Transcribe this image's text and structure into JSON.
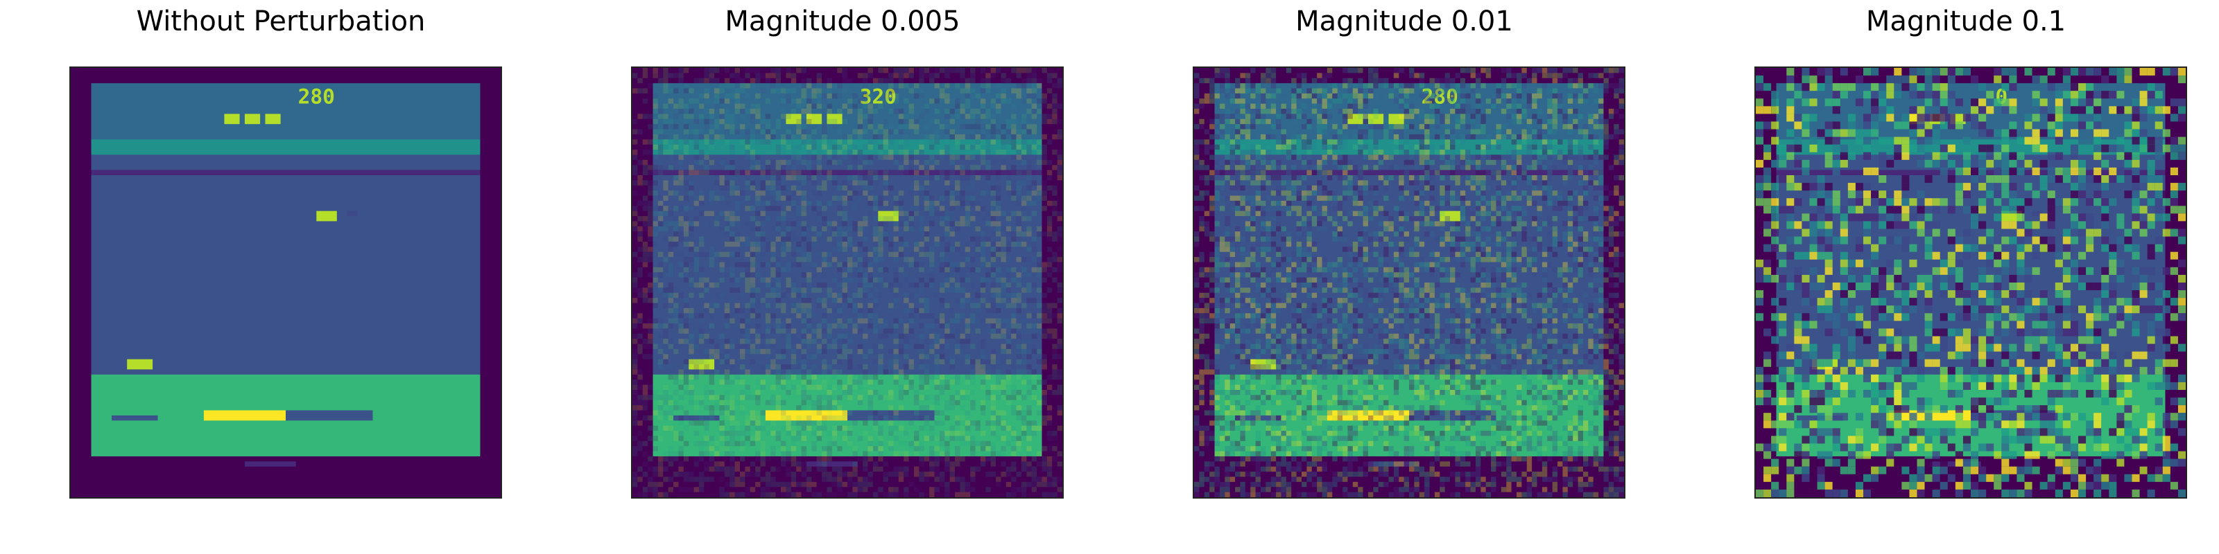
{
  "figure": {
    "panels": [
      {
        "title": "Without Perturbation",
        "noise": 0.0,
        "score": "280"
      },
      {
        "title": "Magnitude 0.005",
        "noise": 0.005,
        "score": "320"
      },
      {
        "title": "Magnitude 0.01",
        "noise": 0.01,
        "score": "280"
      },
      {
        "title": "Magnitude 0.1",
        "noise": 0.1,
        "score": "0"
      }
    ],
    "colors": {
      "dark": "#440154",
      "sky": "#31688e",
      "stripe": "#21918c",
      "water": "#3b528b",
      "seafloor": "#35b779",
      "bright": "#fde725",
      "lime": "#b5de2b"
    }
  }
}
